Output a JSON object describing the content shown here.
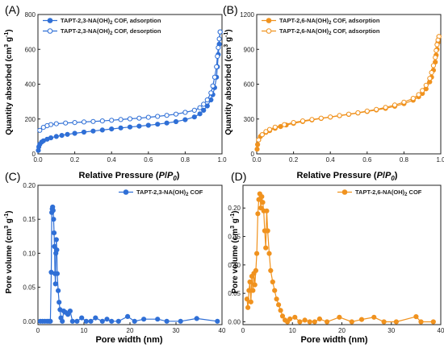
{
  "figure": {
    "panels": [
      {
        "label": "(A)",
        "xlabel_main": "Relative Pressure (",
        "xlabel_italic": "P",
        "xlabel_slash": "/",
        "xlabel_sub": "0",
        "xlabel_end": ")",
        "ylabel": "Quantity absorbed (cm",
        "ylabel_sup": "3",
        "ylabel_unit": " g",
        "ylabel_sup2": "-1",
        "ylabel_end": ")"
      },
      {
        "label": "(B)",
        "xlabel_main": "Relative Pressure (",
        "xlabel_italic": "P",
        "xlabel_slash": "/",
        "xlabel_sub": "0",
        "xlabel_end": ")",
        "ylabel": "Quantity absorbed (cm",
        "ylabel_sup": "3",
        "ylabel_unit": " g",
        "ylabel_sup2": "-1",
        "ylabel_end": ")"
      },
      {
        "label": "(C)",
        "xlabel": "Pore width (nm)",
        "ylabel": "Pore volume (cm",
        "ylabel_sup": "3",
        "ylabel_unit": " g",
        "ylabel_sup2": "-1",
        "ylabel_end": ")"
      },
      {
        "label": "(D)",
        "xlabel": "Pore width (nm)",
        "ylabel": "Pore volume (cm",
        "ylabel_sup": "3",
        "ylabel_unit": " g",
        "ylabel_sup2": "-1",
        "ylabel_end": ")"
      }
    ]
  },
  "chart_data": [
    {
      "type": "line",
      "panel": "(A)",
      "xlim": [
        0,
        1.0
      ],
      "ylim": [
        0,
        800
      ],
      "xticks": [
        "0.0",
        "0.2",
        "0.4",
        "0.6",
        "0.8",
        "1.0"
      ],
      "yticks": [
        "0",
        "200",
        "400",
        "600",
        "800"
      ],
      "legend_position": "top-left",
      "series": [
        {
          "name": "TAPT-2,3-NA(OH)2 COF, adsorption",
          "marker": "filled",
          "color": "#2f6fd6",
          "x": [
            0.002,
            0.005,
            0.01,
            0.02,
            0.03,
            0.05,
            0.07,
            0.1,
            0.13,
            0.16,
            0.2,
            0.25,
            0.3,
            0.35,
            0.4,
            0.45,
            0.5,
            0.55,
            0.6,
            0.65,
            0.7,
            0.75,
            0.8,
            0.85,
            0.88,
            0.9,
            0.92,
            0.94,
            0.95,
            0.96,
            0.97,
            0.975,
            0.98,
            0.985,
            0.99
          ],
          "y": [
            20,
            40,
            55,
            68,
            75,
            84,
            92,
            100,
            106,
            112,
            118,
            125,
            131,
            137,
            143,
            149,
            154,
            159,
            164,
            170,
            177,
            185,
            196,
            212,
            230,
            250,
            275,
            310,
            340,
            380,
            440,
            500,
            570,
            630,
            700
          ]
        },
        {
          "name": "TAPT-2,3-NA(OH)2 COF, desorption",
          "marker": "open",
          "color": "#2f6fd6",
          "x": [
            0.99,
            0.985,
            0.98,
            0.975,
            0.97,
            0.96,
            0.95,
            0.94,
            0.92,
            0.9,
            0.88,
            0.85,
            0.8,
            0.75,
            0.7,
            0.65,
            0.6,
            0.55,
            0.5,
            0.45,
            0.4,
            0.35,
            0.3,
            0.25,
            0.2,
            0.15,
            0.1,
            0.07,
            0.05,
            0.03,
            0.01
          ],
          "y": [
            700,
            660,
            610,
            560,
            500,
            440,
            390,
            350,
            310,
            285,
            265,
            250,
            238,
            228,
            221,
            215,
            210,
            205,
            201,
            197,
            193,
            189,
            186,
            183,
            180,
            177,
            173,
            168,
            162,
            152,
            135
          ]
        }
      ]
    },
    {
      "type": "line",
      "panel": "(B)",
      "xlim": [
        0,
        1.0
      ],
      "ylim": [
        0,
        1200
      ],
      "xticks": [
        "0.0",
        "0.2",
        "0.4",
        "0.6",
        "0.8",
        "1.0"
      ],
      "yticks": [
        "0",
        "300",
        "600",
        "900",
        "1200"
      ],
      "legend_position": "top-left",
      "series": [
        {
          "name": "TAPT-2,6-NA(OH)2 COF, adsorption",
          "marker": "filled",
          "color": "#f0921e",
          "x": [
            0.002,
            0.005,
            0.01,
            0.02,
            0.03,
            0.05,
            0.07,
            0.1,
            0.13,
            0.16,
            0.2,
            0.25,
            0.3,
            0.35,
            0.4,
            0.45,
            0.5,
            0.55,
            0.6,
            0.65,
            0.7,
            0.75,
            0.8,
            0.85,
            0.88,
            0.9,
            0.92,
            0.94,
            0.95,
            0.96,
            0.97,
            0.975,
            0.98,
            0.985,
            0.99
          ],
          "y": [
            40,
            80,
            120,
            150,
            165,
            185,
            200,
            220,
            235,
            248,
            262,
            278,
            292,
            305,
            316,
            328,
            340,
            352,
            365,
            378,
            392,
            410,
            432,
            462,
            492,
            520,
            560,
            620,
            660,
            720,
            790,
            850,
            900,
            960,
            1010
          ]
        },
        {
          "name": "TAPT-2,6-NA(OH)2 COF, adsorption",
          "marker": "open",
          "color": "#f0921e",
          "x": [
            0.99,
            0.985,
            0.98,
            0.975,
            0.97,
            0.96,
            0.95,
            0.94,
            0.92,
            0.9,
            0.88,
            0.85,
            0.8,
            0.75,
            0.7,
            0.65,
            0.6,
            0.55,
            0.5,
            0.45,
            0.4,
            0.35,
            0.3,
            0.25,
            0.2,
            0.15,
            0.1,
            0.07,
            0.05,
            0.03,
            0.01
          ],
          "y": [
            1010,
            980,
            940,
            890,
            830,
            760,
            700,
            650,
            590,
            545,
            510,
            478,
            445,
            420,
            400,
            383,
            368,
            354,
            342,
            330,
            318,
            307,
            296,
            284,
            270,
            252,
            230,
            210,
            192,
            165,
            120
          ]
        }
      ]
    },
    {
      "type": "line",
      "panel": "(C)",
      "xlim": [
        0,
        40
      ],
      "ylim": [
        -0.005,
        0.2
      ],
      "xticks": [
        "0",
        "10",
        "20",
        "30",
        "40"
      ],
      "yticks": [
        "0.00",
        "0.05",
        "0.10",
        "0.15",
        "0.20"
      ],
      "legend_position": "top-right",
      "series": [
        {
          "name": "TAPT-2,3-NA(OH)2 COF",
          "marker": "filled",
          "color": "#2f6fd6",
          "x": [
            0.5,
            1.0,
            1.5,
            2.0,
            2.4,
            2.7,
            2.9,
            3.0,
            3.1,
            3.2,
            3.3,
            3.4,
            3.5,
            3.6,
            3.7,
            3.8,
            3.9,
            4.0,
            4.1,
            4.2,
            4.4,
            4.6,
            4.8,
            5.0,
            5.3,
            5.6,
            6.0,
            6.5,
            7.0,
            7.5,
            8.5,
            9.5,
            10.5,
            11.5,
            12.5,
            14,
            15,
            16,
            17.5,
            19.5,
            21,
            23,
            26,
            28,
            31,
            34.5,
            39
          ],
          "y": [
            0,
            0,
            0,
            0,
            0,
            0,
            0.072,
            0.16,
            0.165,
            0.168,
            0.163,
            0.15,
            0.13,
            0.11,
            0.07,
            0.055,
            0.1,
            0.12,
            0.105,
            0.07,
            0.045,
            0.028,
            0.017,
            0.005,
            0.0,
            0.015,
            0.013,
            0.01,
            0.015,
            0.0,
            0.0,
            0.005,
            0.0,
            0.0,
            0.005,
            0.0,
            0.003,
            0.0,
            0.0,
            0.007,
            0.0,
            0.003,
            0.003,
            0.0,
            0.0,
            0.004,
            0.0
          ]
        }
      ]
    },
    {
      "type": "line",
      "panel": "(D)",
      "xlim": [
        0,
        40
      ],
      "ylim": [
        -0.005,
        0.24
      ],
      "xticks": [
        "0",
        "10",
        "20",
        "30",
        "40"
      ],
      "yticks": [
        "0.00",
        "0.05",
        "0.10",
        "0.15",
        "0.20"
      ],
      "legend_position": "top-right",
      "series": [
        {
          "name": "TAPT-2,6-NA(OH)2 COF",
          "marker": "filled",
          "color": "#f0921e",
          "x": [
            0.8,
            1.0,
            1.2,
            1.4,
            1.6,
            1.8,
            2.0,
            2.2,
            2.4,
            2.6,
            2.8,
            3.0,
            3.2,
            3.4,
            3.6,
            3.8,
            4.0,
            4.2,
            4.4,
            4.6,
            4.8,
            5.0,
            5.3,
            5.6,
            6.0,
            6.4,
            6.8,
            7.2,
            7.6,
            8.0,
            8.5,
            9.0,
            9.5,
            10.5,
            11.5,
            12.5,
            13.5,
            14.5,
            15.5,
            17,
            19.5,
            22,
            24,
            26.5,
            28.5,
            31,
            35,
            36,
            38.5
          ],
          "y": [
            0.04,
            0.025,
            0.055,
            0.07,
            0.035,
            0.08,
            0.055,
            0.085,
            0.065,
            0.09,
            0.12,
            0.19,
            0.215,
            0.225,
            0.2,
            0.22,
            0.21,
            0.195,
            0.16,
            0.13,
            0.195,
            0.16,
            0.12,
            0.09,
            0.07,
            0.055,
            0.04,
            0.03,
            0.02,
            0.01,
            0.003,
            0.0,
            0.005,
            0.008,
            0.0,
            0.003,
            0.0,
            0.0,
            0.005,
            0.0,
            0.008,
            0.0,
            0.004,
            0.008,
            0.0,
            0.0,
            0.009,
            0.0,
            0.0
          ]
        }
      ]
    }
  ]
}
